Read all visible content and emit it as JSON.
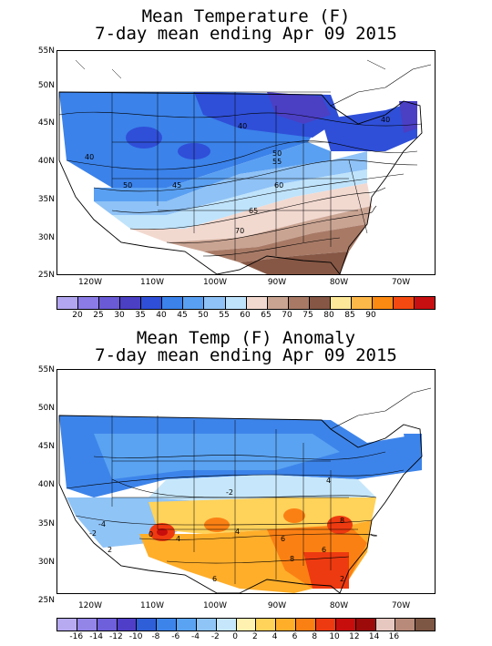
{
  "top": {
    "title_line1": "Mean Temperature (F)",
    "title_line2": "7-day mean ending Apr 09 2015",
    "lat_labels": [
      "55N",
      "50N",
      "45N",
      "40N",
      "35N",
      "30N",
      "25N"
    ],
    "lon_labels": [
      "120W",
      "110W",
      "100W",
      "90W",
      "80W",
      "70W"
    ],
    "contour_labels": [
      "40",
      "40",
      "45",
      "50",
      "55",
      "50",
      "60",
      "65",
      "70",
      "40"
    ],
    "legend": {
      "labels": [
        "20",
        "25",
        "30",
        "35",
        "40",
        "45",
        "50",
        "55",
        "60",
        "65",
        "70",
        "75",
        "80",
        "85",
        "90"
      ],
      "colors": [
        "#b3a6f0",
        "#8a7be6",
        "#6a5ad6",
        "#4b3fc4",
        "#2f4fd8",
        "#3b82ea",
        "#5aa0f2",
        "#8fc2f6",
        "#bfe3fb",
        "#f2d9d0",
        "#caa493",
        "#a87a66",
        "#865745",
        "#fde89a",
        "#fdb84a",
        "#fb8a12",
        "#f44a12",
        "#c70f12"
      ]
    }
  },
  "bottom": {
    "title_line1": "Mean Temp (F) Anomaly",
    "title_line2": "7-day mean ending Apr 09 2015",
    "lat_labels": [
      "55N",
      "50N",
      "45N",
      "40N",
      "35N",
      "30N",
      "25N"
    ],
    "lon_labels": [
      "120W",
      "110W",
      "100W",
      "90W",
      "80W",
      "70W"
    ],
    "contour_labels": [
      "-4",
      "-2",
      "2",
      "0",
      "4",
      "6",
      "4",
      "-2",
      "4",
      "6",
      "8",
      "6",
      "8",
      "2"
    ],
    "legend": {
      "labels": [
        "-16",
        "-14",
        "-12",
        "-10",
        "-8",
        "-6",
        "-4",
        "-2",
        "0",
        "2",
        "4",
        "6",
        "8",
        "10",
        "12",
        "14",
        "16"
      ],
      "colors": [
        "#b8aaf0",
        "#9384e8",
        "#6e5fda",
        "#4f3fc8",
        "#2e5fd8",
        "#3d84ea",
        "#5aa3f2",
        "#8fc4f6",
        "#c6e7fb",
        "#fff2b0",
        "#ffd25a",
        "#ffae2a",
        "#fb8014",
        "#ee3a10",
        "#c80d0d",
        "#9d0a0a",
        "#e6c8c0",
        "#b88a7a",
        "#7e5644"
      ]
    }
  }
}
